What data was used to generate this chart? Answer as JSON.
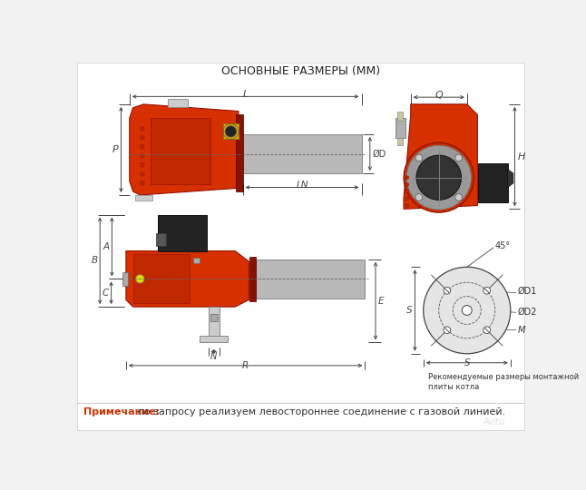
{
  "title": "ОСНОВНЫЕ РАЗМЕРЫ (ММ)",
  "note_label": "Примечание:",
  "note_text": " по запросу реализуем левостороннее соединение с газовой линией.",
  "note_label_color": "#cc3300",
  "note_text_color": "#333333",
  "bg": "#f2f2f2",
  "white": "#ffffff",
  "red": "#d63000",
  "gray_tube": "#b0b0b0",
  "gray_light": "#cccccc",
  "dark": "#222222",
  "dim_color": "#444444",
  "line_color": "#555555"
}
